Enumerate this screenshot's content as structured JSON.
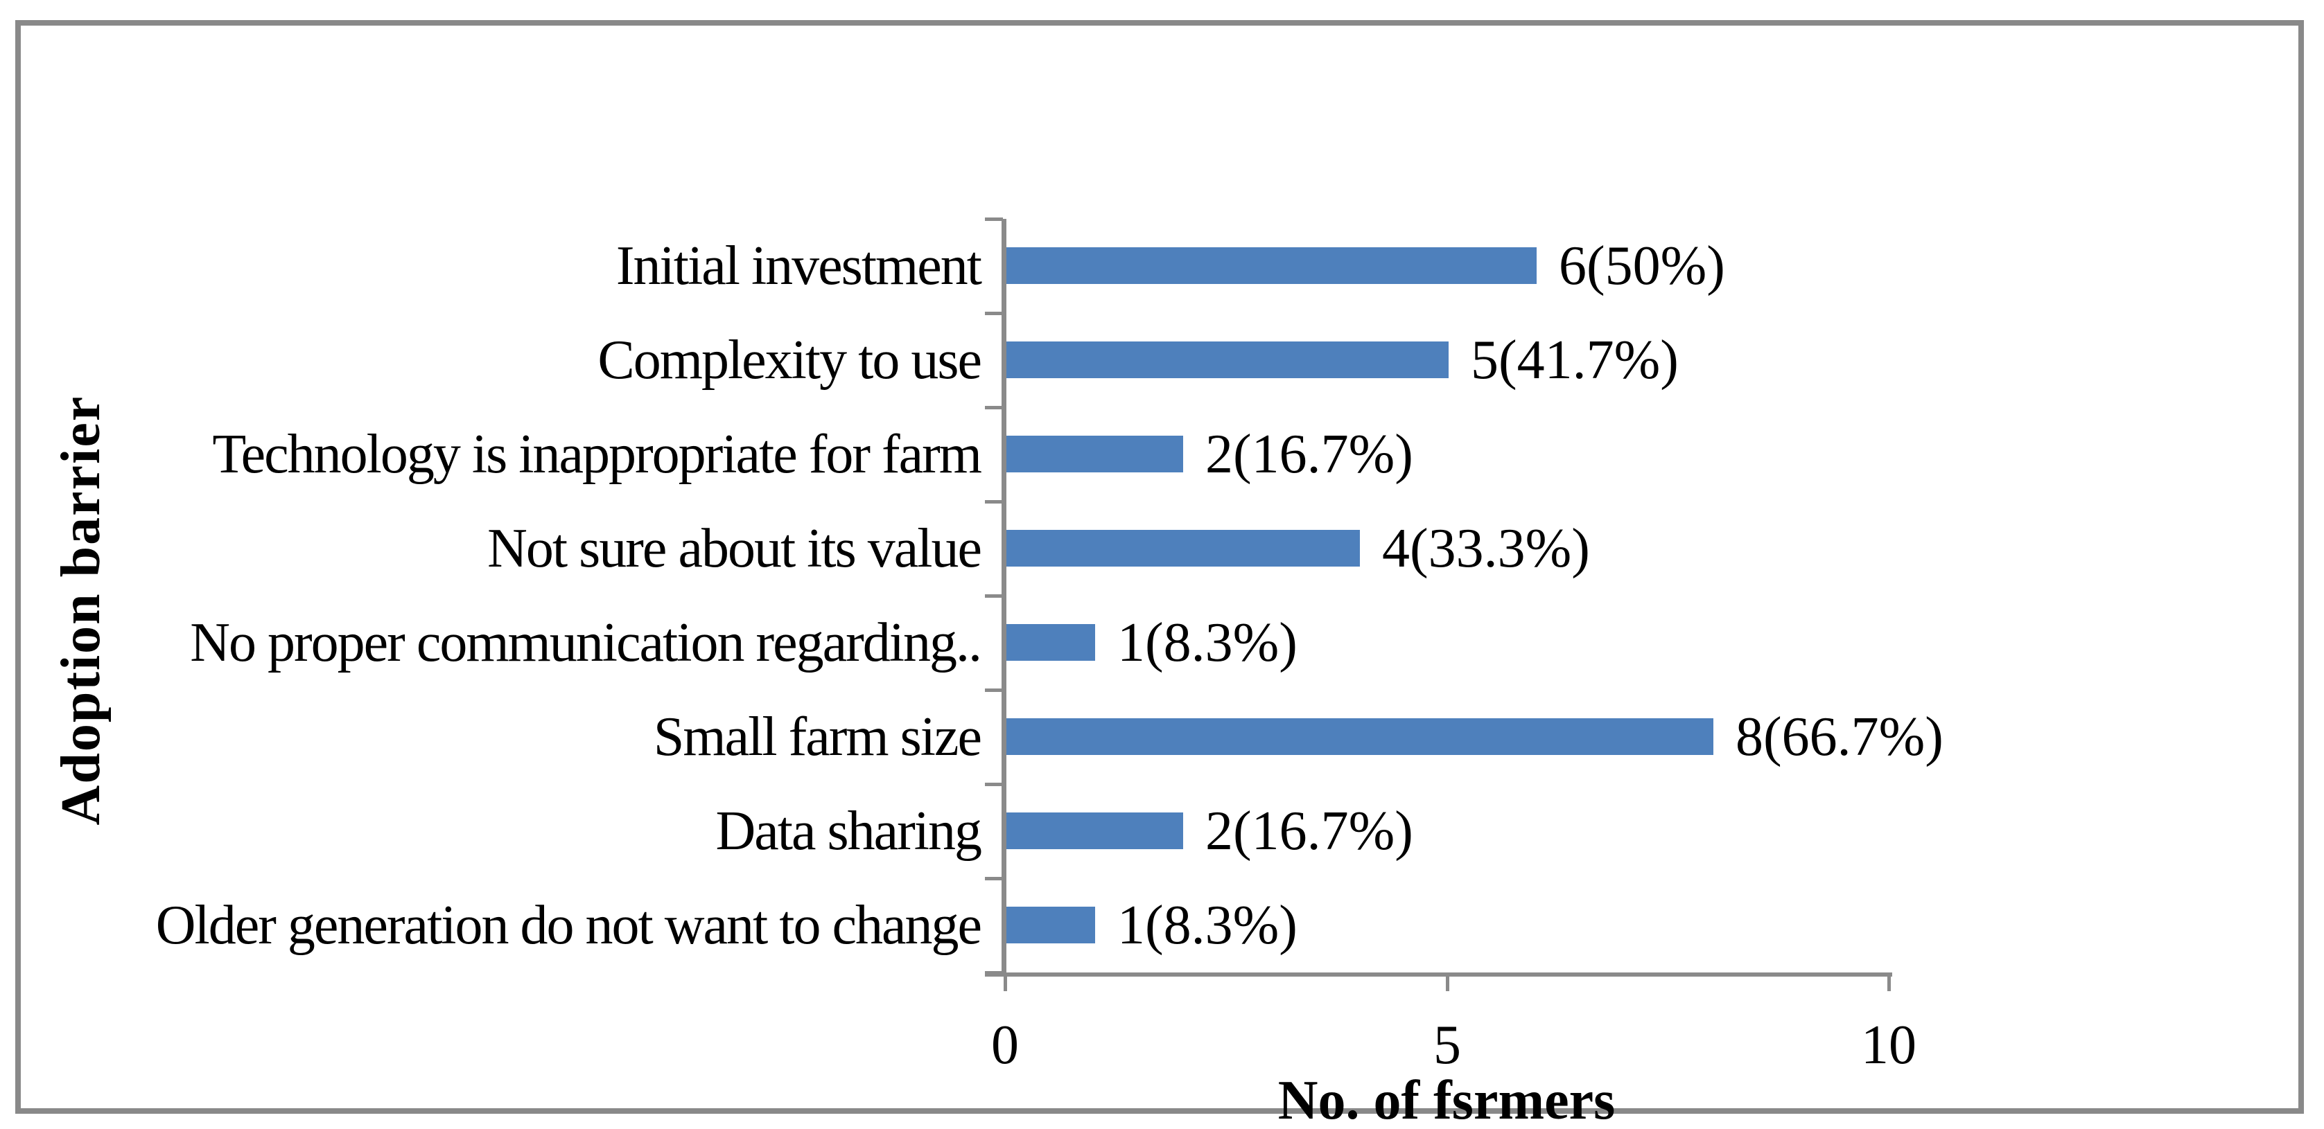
{
  "chart_data": {
    "type": "bar",
    "orientation": "horizontal",
    "title": "",
    "xlabel": "No. of fsrmers",
    "ylabel": "Adoption barrier",
    "categories": [
      "Initial investment",
      "Complexity to use",
      "Technology is inappropriate for farm",
      "Not sure about its value",
      "No proper communication regarding..",
      "Small farm size",
      "Data sharing",
      "Older generation do not want to change"
    ],
    "values": [
      6,
      5,
      2,
      4,
      1,
      8,
      2,
      1
    ],
    "data_labels": [
      "6(50%)",
      "5(41.7%)",
      "2(16.7%)",
      "4(33.3%)",
      "1(8.3%)",
      "8(66.7%)",
      "2(16.7%)",
      "1(8.3%)"
    ],
    "x_ticks": [
      "0",
      "5",
      "10"
    ],
    "xlim": [
      0,
      10
    ],
    "grid": false,
    "legend": null,
    "bar_color": "#4E80BC",
    "axis_color": "#8a8a8a",
    "frame_color": "#898989",
    "text_color": "#000000"
  }
}
